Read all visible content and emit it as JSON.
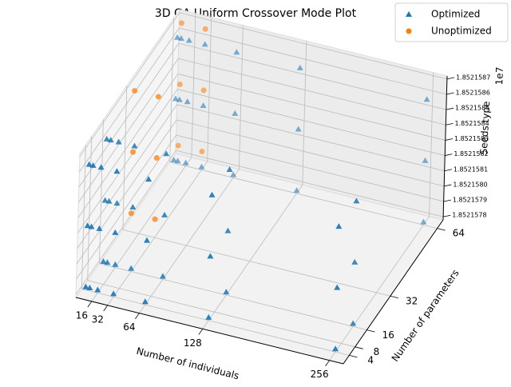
{
  "chart_data": {
    "type": "scatter3d",
    "title": "3D GA Uniform Crossover Mode Plot",
    "x_label": "Number of individuals",
    "y_label": "Number of parameters",
    "z_label": "Seeds type",
    "z_offset_label": "1e7",
    "xlim": [
      0,
      270
    ],
    "ylim": [
      0,
      68
    ],
    "zlim": [
      18521577.8,
      18521587.2
    ],
    "xticks": [
      16,
      32,
      64,
      128,
      256
    ],
    "yticks": [
      4,
      8,
      16,
      32,
      64
    ],
    "zticks": [
      {
        "value": 18521578,
        "label": "1.8521578"
      },
      {
        "value": 18521579,
        "label": "1.8521579"
      },
      {
        "value": 18521580,
        "label": "1.8521580"
      },
      {
        "value": 18521581,
        "label": "1.8521581"
      },
      {
        "value": 18521582,
        "label": "1.8521582"
      },
      {
        "value": 18521583,
        "label": "1.8521583"
      },
      {
        "value": 18521584,
        "label": "1.8521584"
      },
      {
        "value": 18521585,
        "label": "1.8521585"
      },
      {
        "value": 18521586,
        "label": "1.8521586"
      },
      {
        "value": 18521587,
        "label": "1.8521587"
      }
    ],
    "grid": true,
    "legend": "upper right",
    "series": [
      {
        "name": "Optimized",
        "color": "#1f77b4",
        "marker": "triangle",
        "x": [
          4,
          4,
          4,
          4,
          4,
          4,
          4,
          4,
          4,
          8,
          8,
          8,
          8,
          8,
          8,
          8,
          8,
          8,
          16,
          16,
          16,
          16,
          16,
          16,
          16,
          16,
          16,
          32,
          32,
          32,
          32,
          32,
          32,
          32,
          32,
          32,
          64,
          64,
          64,
          64,
          64,
          64,
          64,
          64,
          64,
          128,
          128,
          128,
          128,
          128,
          128,
          128,
          128,
          128,
          256,
          256,
          256,
          256,
          256,
          256,
          256,
          256,
          256
        ],
        "y": [
          4,
          4,
          4,
          16,
          16,
          16,
          64,
          64,
          64,
          4,
          4,
          4,
          16,
          16,
          16,
          64,
          64,
          64,
          4,
          4,
          4,
          16,
          16,
          16,
          64,
          64,
          64,
          4,
          4,
          4,
          16,
          16,
          16,
          64,
          64,
          64,
          4,
          4,
          4,
          16,
          16,
          16,
          64,
          64,
          64,
          4,
          4,
          4,
          16,
          16,
          16,
          64,
          64,
          64,
          4,
          4,
          4,
          16,
          16,
          16,
          64,
          64,
          64
        ],
        "z": [
          18521578,
          18521582,
          18521586,
          18521578,
          18521582,
          18521586,
          18521578,
          18521582,
          18521586,
          18521578,
          18521582,
          18521586,
          18521578,
          18521582,
          18521586,
          18521578,
          18521582,
          18521586,
          18521578,
          18521582,
          18521586,
          18521578,
          18521582,
          18521586,
          18521578,
          18521582,
          18521586,
          18521578,
          18521582,
          18521586,
          18521578,
          18521582,
          18521586,
          18521578,
          18521582,
          18521586,
          18521578,
          18521582,
          18521586,
          18521578,
          18521582,
          18521586,
          18521578,
          18521582,
          18521586,
          18521578,
          18521582,
          18521586,
          18521578,
          18521582,
          18521586,
          18521578,
          18521582,
          18521586,
          18521578,
          18521582,
          18521586,
          18521578,
          18521582,
          18521586,
          18521578,
          18521582,
          18521586
        ]
      },
      {
        "name": "Unoptimized",
        "color": "#ff7f0e",
        "marker": "circle",
        "x": [
          8,
          8,
          8,
          8,
          8,
          8,
          32,
          32,
          32,
          32,
          32,
          32
        ],
        "y": [
          32,
          32,
          32,
          64,
          64,
          64,
          32,
          32,
          32,
          64,
          64,
          64
        ],
        "z": [
          18521579,
          18521583,
          18521587,
          18521579,
          18521583,
          18521587,
          18521579,
          18521583,
          18521587,
          18521579,
          18521583,
          18521587
        ]
      }
    ]
  }
}
